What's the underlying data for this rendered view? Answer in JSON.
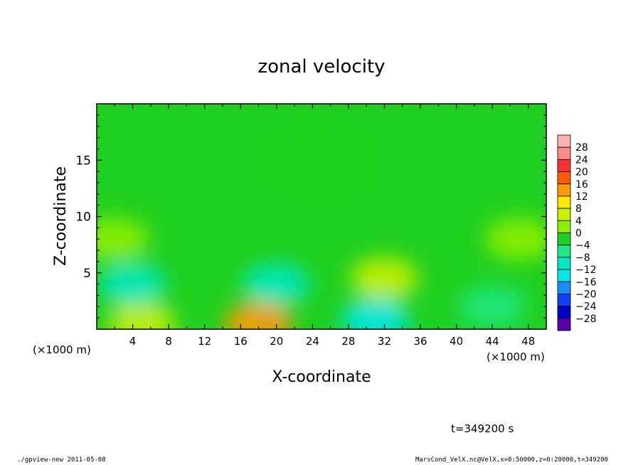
{
  "chart_data": {
    "type": "heatmap",
    "title": "zonal velocity",
    "xlabel": "X-coordinate",
    "ylabel": "Z-coordinate",
    "x_unit": "(×1000 m)",
    "y_unit": "(×1000 m)",
    "xlim": [
      0,
      50
    ],
    "ylim": [
      0,
      20
    ],
    "x_ticks": [
      4,
      8,
      12,
      16,
      20,
      24,
      28,
      32,
      36,
      40,
      44,
      48
    ],
    "y_ticks": [
      5,
      10,
      15
    ],
    "colorbar": {
      "levels": [
        28,
        24,
        20,
        16,
        12,
        8,
        4,
        0,
        -4,
        -8,
        -12,
        -16,
        -20,
        -24,
        -28
      ],
      "colors": [
        "#ff8a8a",
        "#ff3030",
        "#ff5a00",
        "#ff9a00",
        "#ffe600",
        "#c8f000",
        "#8ef000",
        "#20d020",
        "#20e880",
        "#00e8c0",
        "#00e8e8",
        "#1890ff",
        "#1040ff",
        "#0000c8",
        "#5a00a8"
      ]
    },
    "features": [
      {
        "x": 18,
        "z": 0.5,
        "value": 14
      },
      {
        "x": 5,
        "z": 0.5,
        "value": 9
      },
      {
        "x": 32,
        "z": 4.5,
        "value": 9
      },
      {
        "x": 47,
        "z": 8,
        "value": 5
      },
      {
        "x": 2,
        "z": 8,
        "value": 4
      },
      {
        "x": 20,
        "z": 4,
        "value": -10
      },
      {
        "x": 4,
        "z": 4,
        "value": -7
      },
      {
        "x": 31,
        "z": 0.8,
        "value": -12
      },
      {
        "x": 44,
        "z": 2,
        "value": -6
      },
      {
        "x": 25,
        "z": 15,
        "value": 1
      }
    ],
    "background_value": -1,
    "time_label": "t=349200 s"
  },
  "footer": {
    "left": "./gpview-new  2011-05-08",
    "right": "MarsCond_VelX.nc@VelX,x=0:50000,z=0:20000,t=349200"
  }
}
